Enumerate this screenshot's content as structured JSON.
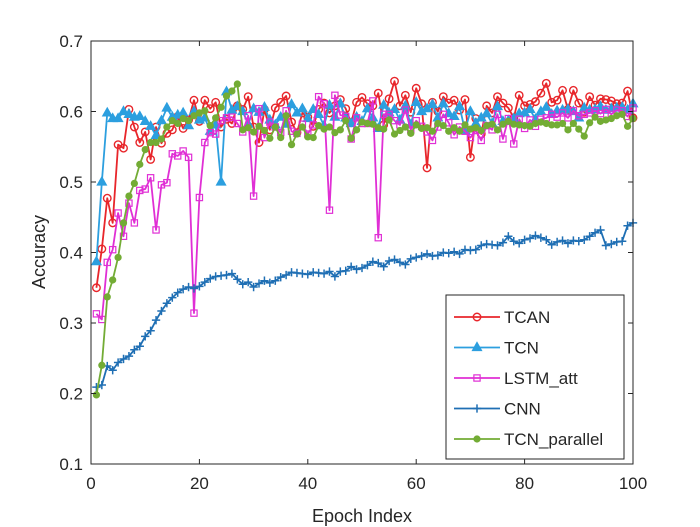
{
  "chart_data": {
    "type": "line",
    "title": "",
    "xlabel": "Epoch Index",
    "ylabel": "Accuracy",
    "xlim": [
      0,
      100
    ],
    "ylim": [
      0.1,
      0.7
    ],
    "xticks": [
      0,
      20,
      40,
      60,
      80,
      100
    ],
    "yticks": [
      0.1,
      0.2,
      0.3,
      0.4,
      0.5,
      0.6,
      0.7
    ],
    "xtick_labels": [
      "0",
      "20",
      "40",
      "60",
      "80",
      "100"
    ],
    "ytick_labels": [
      "0.1",
      "0.2",
      "0.3",
      "0.4",
      "0.5",
      "0.6",
      "0.7"
    ],
    "grid": false,
    "legend_position": "bottom-right",
    "series": [
      {
        "name": "TCAN",
        "color": "#e8262b",
        "marker": "circle",
        "x": [
          1,
          2,
          3,
          4,
          5,
          6,
          7,
          8,
          9,
          10,
          11,
          12,
          13,
          14,
          15,
          16,
          17,
          18,
          19,
          20,
          21,
          22,
          23,
          24,
          25,
          26,
          27,
          28,
          29,
          30,
          31,
          32,
          33,
          34,
          35,
          36,
          37,
          38,
          39,
          40,
          41,
          42,
          43,
          44,
          45,
          46,
          47,
          48,
          49,
          50,
          51,
          52,
          53,
          54,
          55,
          56,
          57,
          58,
          59,
          60,
          61,
          62,
          63,
          64,
          65,
          66,
          67,
          68,
          69,
          70,
          71,
          72,
          73,
          74,
          75,
          76,
          77,
          78,
          79,
          80,
          81,
          82,
          83,
          84,
          85,
          86,
          87,
          88,
          89,
          90,
          91,
          92,
          93,
          94,
          95,
          96,
          97,
          98,
          99,
          100
        ],
        "values": [
          0.35,
          0.405,
          0.477,
          0.442,
          0.553,
          0.548,
          0.603,
          0.578,
          0.556,
          0.571,
          0.532,
          0.578,
          0.555,
          0.569,
          0.574,
          0.593,
          0.576,
          0.588,
          0.616,
          0.586,
          0.616,
          0.604,
          0.613,
          0.578,
          0.589,
          0.583,
          0.608,
          0.603,
          0.621,
          0.578,
          0.556,
          0.603,
          0.574,
          0.605,
          0.613,
          0.622,
          0.585,
          0.57,
          0.598,
          0.592,
          0.579,
          0.603,
          0.612,
          0.598,
          0.608,
          0.617,
          0.604,
          0.584,
          0.613,
          0.62,
          0.611,
          0.608,
          0.626,
          0.581,
          0.618,
          0.643,
          0.608,
          0.623,
          0.599,
          0.633,
          0.611,
          0.52,
          0.613,
          0.6,
          0.621,
          0.612,
          0.616,
          0.602,
          0.617,
          0.535,
          0.59,
          0.568,
          0.608,
          0.598,
          0.621,
          0.612,
          0.605,
          0.591,
          0.623,
          0.608,
          0.61,
          0.614,
          0.626,
          0.64,
          0.613,
          0.616,
          0.63,
          0.603,
          0.63,
          0.612,
          0.599,
          0.621,
          0.609,
          0.618,
          0.617,
          0.615,
          0.611,
          0.612,
          0.629,
          0.591
        ]
      },
      {
        "name": "TCN",
        "color": "#2c9fdf",
        "marker": "triangle",
        "x": [
          1,
          2,
          3,
          4,
          5,
          6,
          7,
          8,
          9,
          10,
          11,
          12,
          13,
          14,
          15,
          16,
          17,
          18,
          19,
          20,
          21,
          22,
          23,
          24,
          25,
          26,
          27,
          28,
          29,
          30,
          31,
          32,
          33,
          34,
          35,
          36,
          37,
          38,
          39,
          40,
          41,
          42,
          43,
          44,
          45,
          46,
          47,
          48,
          49,
          50,
          51,
          52,
          53,
          54,
          55,
          56,
          57,
          58,
          59,
          60,
          61,
          62,
          63,
          64,
          65,
          66,
          67,
          68,
          69,
          70,
          71,
          72,
          73,
          74,
          75,
          76,
          77,
          78,
          79,
          80,
          81,
          82,
          83,
          84,
          85,
          86,
          87,
          88,
          89,
          90,
          91,
          92,
          93,
          94,
          95,
          96,
          97,
          98,
          99,
          100
        ],
        "values": [
          0.387,
          0.5,
          0.598,
          0.59,
          0.59,
          0.6,
          0.596,
          0.592,
          0.593,
          0.586,
          0.579,
          0.566,
          0.587,
          0.605,
          0.592,
          0.595,
          0.598,
          0.58,
          0.6,
          0.588,
          0.591,
          0.572,
          0.581,
          0.5,
          0.628,
          0.602,
          0.607,
          0.6,
          0.582,
          0.604,
          0.599,
          0.606,
          0.588,
          0.581,
          0.592,
          0.582,
          0.61,
          0.598,
          0.604,
          0.59,
          0.603,
          0.596,
          0.58,
          0.609,
          0.592,
          0.611,
          0.591,
          0.583,
          0.592,
          0.586,
          0.604,
          0.591,
          0.576,
          0.609,
          0.598,
          0.603,
          0.588,
          0.608,
          0.581,
          0.613,
          0.6,
          0.604,
          0.61,
          0.591,
          0.611,
          0.597,
          0.593,
          0.607,
          0.573,
          0.6,
          0.583,
          0.591,
          0.597,
          0.583,
          0.607,
          0.586,
          0.587,
          0.59,
          0.597,
          0.598,
          0.603,
          0.589,
          0.6,
          0.606,
          0.596,
          0.601,
          0.602,
          0.603,
          0.6,
          0.591,
          0.605,
          0.602,
          0.603,
          0.607,
          0.602,
          0.604,
          0.605,
          0.606,
          0.602,
          0.611
        ]
      },
      {
        "name": "LSTM_att",
        "color": "#e02fd5",
        "marker": "square",
        "x": [
          1,
          2,
          3,
          4,
          5,
          6,
          7,
          8,
          9,
          10,
          11,
          12,
          13,
          14,
          15,
          16,
          17,
          18,
          19,
          20,
          21,
          22,
          23,
          24,
          25,
          26,
          27,
          28,
          29,
          30,
          31,
          32,
          33,
          34,
          35,
          36,
          37,
          38,
          39,
          40,
          41,
          42,
          43,
          44,
          45,
          46,
          47,
          48,
          49,
          50,
          51,
          52,
          53,
          54,
          55,
          56,
          57,
          58,
          59,
          60,
          61,
          62,
          63,
          64,
          65,
          66,
          67,
          68,
          69,
          70,
          71,
          72,
          73,
          74,
          75,
          76,
          77,
          78,
          79,
          80,
          81,
          82,
          83,
          84,
          85,
          86,
          87,
          88,
          89,
          90,
          91,
          92,
          93,
          94,
          95,
          96,
          97,
          98,
          99,
          100
        ],
        "values": [
          0.313,
          0.305,
          0.386,
          0.404,
          0.456,
          0.423,
          0.47,
          0.442,
          0.488,
          0.49,
          0.506,
          0.432,
          0.496,
          0.499,
          0.54,
          0.537,
          0.544,
          0.535,
          0.314,
          0.478,
          0.556,
          0.57,
          0.568,
          0.587,
          0.591,
          0.592,
          0.583,
          0.571,
          0.594,
          0.48,
          0.604,
          0.563,
          0.585,
          0.578,
          0.57,
          0.601,
          0.572,
          0.569,
          0.582,
          0.568,
          0.581,
          0.621,
          0.611,
          0.46,
          0.623,
          0.595,
          0.593,
          0.561,
          0.591,
          0.583,
          0.583,
          0.615,
          0.421,
          0.596,
          0.596,
          0.587,
          0.581,
          0.602,
          0.574,
          0.587,
          0.579,
          0.571,
          0.559,
          0.578,
          0.596,
          0.584,
          0.567,
          0.578,
          0.572,
          0.563,
          0.573,
          0.559,
          0.58,
          0.574,
          0.596,
          0.561,
          0.59,
          0.554,
          0.589,
          0.576,
          0.588,
          0.579,
          0.589,
          0.591,
          0.596,
          0.592,
          0.598,
          0.591,
          0.601,
          0.594,
          0.596,
          0.598,
          0.601,
          0.597,
          0.603,
          0.596,
          0.602,
          0.601,
          0.593,
          0.605
        ]
      },
      {
        "name": "CNN",
        "color": "#1f6fb4",
        "marker": "plus",
        "x": [
          1,
          2,
          3,
          4,
          5,
          6,
          7,
          8,
          9,
          10,
          11,
          12,
          13,
          14,
          15,
          16,
          17,
          18,
          19,
          20,
          21,
          22,
          23,
          24,
          25,
          26,
          27,
          28,
          29,
          30,
          31,
          32,
          33,
          34,
          35,
          36,
          37,
          38,
          39,
          40,
          41,
          42,
          43,
          44,
          45,
          46,
          47,
          48,
          49,
          50,
          51,
          52,
          53,
          54,
          55,
          56,
          57,
          58,
          59,
          60,
          61,
          62,
          63,
          64,
          65,
          66,
          67,
          68,
          69,
          70,
          71,
          72,
          73,
          74,
          75,
          76,
          77,
          78,
          79,
          80,
          81,
          82,
          83,
          84,
          85,
          86,
          87,
          88,
          89,
          90,
          91,
          92,
          93,
          94,
          95,
          96,
          97,
          98,
          99,
          100
        ],
        "values": [
          0.209,
          0.212,
          0.239,
          0.233,
          0.244,
          0.249,
          0.253,
          0.262,
          0.267,
          0.281,
          0.289,
          0.304,
          0.317,
          0.328,
          0.336,
          0.343,
          0.348,
          0.351,
          0.349,
          0.352,
          0.358,
          0.363,
          0.366,
          0.367,
          0.368,
          0.37,
          0.362,
          0.355,
          0.358,
          0.351,
          0.356,
          0.36,
          0.357,
          0.36,
          0.365,
          0.368,
          0.372,
          0.371,
          0.37,
          0.369,
          0.372,
          0.371,
          0.37,
          0.373,
          0.366,
          0.373,
          0.374,
          0.38,
          0.376,
          0.378,
          0.382,
          0.387,
          0.385,
          0.38,
          0.388,
          0.39,
          0.386,
          0.383,
          0.391,
          0.393,
          0.395,
          0.398,
          0.395,
          0.396,
          0.4,
          0.399,
          0.401,
          0.398,
          0.404,
          0.403,
          0.404,
          0.41,
          0.412,
          0.411,
          0.41,
          0.414,
          0.423,
          0.416,
          0.413,
          0.418,
          0.42,
          0.424,
          0.421,
          0.418,
          0.411,
          0.415,
          0.417,
          0.413,
          0.417,
          0.416,
          0.418,
          0.423,
          0.428,
          0.432,
          0.41,
          0.412,
          0.415,
          0.416,
          0.438,
          0.442
        ]
      },
      {
        "name": "TCN_parallel",
        "color": "#73ac35",
        "marker": "star",
        "x": [
          1,
          2,
          3,
          4,
          5,
          6,
          7,
          8,
          9,
          10,
          11,
          12,
          13,
          14,
          15,
          16,
          17,
          18,
          19,
          20,
          21,
          22,
          23,
          24,
          25,
          26,
          27,
          28,
          29,
          30,
          31,
          32,
          33,
          34,
          35,
          36,
          37,
          38,
          39,
          40,
          41,
          42,
          43,
          44,
          45,
          46,
          47,
          48,
          49,
          50,
          51,
          52,
          53,
          54,
          55,
          56,
          57,
          58,
          59,
          60,
          61,
          62,
          63,
          64,
          65,
          66,
          67,
          68,
          69,
          70,
          71,
          72,
          73,
          74,
          75,
          76,
          77,
          78,
          79,
          80,
          81,
          82,
          83,
          84,
          85,
          86,
          87,
          88,
          89,
          90,
          91,
          92,
          93,
          94,
          95,
          96,
          97,
          98,
          99,
          100
        ],
        "values": [
          0.198,
          0.24,
          0.337,
          0.361,
          0.393,
          0.442,
          0.48,
          0.498,
          0.525,
          0.546,
          0.556,
          0.556,
          0.561,
          0.578,
          0.587,
          0.583,
          0.59,
          0.587,
          0.594,
          0.598,
          0.601,
          0.58,
          0.591,
          0.606,
          0.622,
          0.629,
          0.639,
          0.574,
          0.577,
          0.571,
          0.579,
          0.573,
          0.562,
          0.578,
          0.563,
          0.594,
          0.553,
          0.568,
          0.578,
          0.564,
          0.563,
          0.58,
          0.575,
          0.578,
          0.57,
          0.574,
          0.587,
          0.562,
          0.574,
          0.585,
          0.583,
          0.582,
          0.577,
          0.575,
          0.588,
          0.568,
          0.573,
          0.578,
          0.569,
          0.581,
          0.576,
          0.577,
          0.572,
          0.583,
          0.58,
          0.572,
          0.577,
          0.572,
          0.581,
          0.575,
          0.577,
          0.573,
          0.58,
          0.582,
          0.574,
          0.582,
          0.586,
          0.582,
          0.581,
          0.58,
          0.579,
          0.583,
          0.585,
          0.583,
          0.581,
          0.581,
          0.583,
          0.574,
          0.583,
          0.575,
          0.565,
          0.584,
          0.592,
          0.586,
          0.588,
          0.59,
          0.594,
          0.596,
          0.579,
          0.59
        ]
      }
    ]
  }
}
